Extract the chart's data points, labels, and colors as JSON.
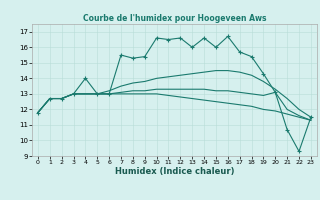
{
  "title": "Courbe de l'humidex pour Hoogeveen Aws",
  "xlabel": "Humidex (Indice chaleur)",
  "background_color": "#d6f0ee",
  "grid_color": "#b8ddd8",
  "line_color": "#1a7a6e",
  "xlim": [
    -0.5,
    23.5
  ],
  "ylim": [
    9,
    17.5
  ],
  "xticks": [
    0,
    1,
    2,
    3,
    4,
    5,
    6,
    7,
    8,
    9,
    10,
    11,
    12,
    13,
    14,
    15,
    16,
    17,
    18,
    19,
    20,
    21,
    22,
    23
  ],
  "yticks": [
    9,
    10,
    11,
    12,
    13,
    14,
    15,
    16,
    17
  ],
  "series": [
    {
      "x": [
        0,
        1,
        2,
        3,
        4,
        5,
        6,
        7,
        8,
        9,
        10,
        11,
        12,
        13,
        14,
        15,
        16,
        17,
        18,
        19,
        20,
        21,
        22,
        23
      ],
      "y": [
        11.8,
        12.7,
        12.7,
        13.0,
        14.0,
        13.0,
        13.0,
        15.5,
        15.3,
        15.4,
        16.6,
        16.5,
        16.6,
        16.0,
        16.6,
        16.0,
        16.7,
        15.7,
        15.4,
        14.3,
        13.1,
        10.7,
        9.3,
        11.5
      ],
      "marker": "+"
    },
    {
      "x": [
        0,
        1,
        2,
        3,
        4,
        5,
        6,
        7,
        8,
        9,
        10,
        11,
        12,
        13,
        14,
        15,
        16,
        17,
        18,
        19,
        20,
        21,
        22,
        23
      ],
      "y": [
        11.8,
        12.7,
        12.7,
        13.0,
        13.0,
        13.0,
        13.2,
        13.5,
        13.7,
        13.8,
        14.0,
        14.1,
        14.2,
        14.3,
        14.4,
        14.5,
        14.5,
        14.4,
        14.2,
        13.8,
        13.3,
        12.7,
        12.0,
        11.5
      ],
      "marker": null
    },
    {
      "x": [
        0,
        1,
        2,
        3,
        4,
        5,
        6,
        7,
        8,
        9,
        10,
        11,
        12,
        13,
        14,
        15,
        16,
        17,
        18,
        19,
        20,
        21,
        22,
        23
      ],
      "y": [
        11.8,
        12.7,
        12.7,
        13.0,
        13.0,
        13.0,
        13.0,
        13.1,
        13.2,
        13.2,
        13.3,
        13.3,
        13.3,
        13.3,
        13.3,
        13.2,
        13.2,
        13.1,
        13.0,
        12.9,
        13.1,
        12.0,
        11.6,
        11.3
      ],
      "marker": null
    },
    {
      "x": [
        0,
        1,
        2,
        3,
        4,
        5,
        6,
        7,
        8,
        9,
        10,
        11,
        12,
        13,
        14,
        15,
        16,
        17,
        18,
        19,
        20,
        21,
        22,
        23
      ],
      "y": [
        11.8,
        12.7,
        12.7,
        13.0,
        13.0,
        13.0,
        13.0,
        13.0,
        13.0,
        13.0,
        13.0,
        12.9,
        12.8,
        12.7,
        12.6,
        12.5,
        12.4,
        12.3,
        12.2,
        12.0,
        11.9,
        11.7,
        11.5,
        11.3
      ],
      "marker": null
    }
  ]
}
